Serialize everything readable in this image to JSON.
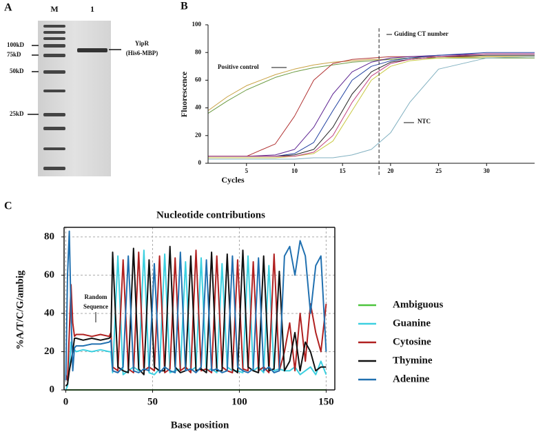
{
  "panel_labels": [
    "A",
    "B",
    "C"
  ],
  "gel": {
    "lanes": [
      "M",
      "1"
    ],
    "markers": [
      "100kD",
      "75kD",
      "50kD",
      "25kD"
    ],
    "band_label": [
      "YipR",
      "(His6-MBP)"
    ]
  },
  "chart_data": [
    {
      "type": "line",
      "x_label": "Cycles",
      "y_label": "Fluorescence",
      "x": [
        1,
        3,
        5,
        8,
        10,
        12,
        14,
        16,
        18,
        20,
        22,
        25,
        30,
        35
      ],
      "xlim": [
        1,
        35
      ],
      "ylim": [
        0,
        100
      ],
      "xticks": [
        5,
        10,
        15,
        20,
        25,
        30
      ],
      "yticks": [
        0,
        20,
        40,
        60,
        80,
        100
      ],
      "grid": false,
      "ct_line": {
        "x": 18.8,
        "label": "Guiding CT number"
      },
      "annotations": [
        "Positive control",
        "NTC"
      ],
      "series": [
        {
          "color": "#c8a040",
          "values": [
            38,
            48,
            56,
            64,
            68,
            71,
            73,
            74,
            75,
            75,
            76,
            76,
            77,
            77
          ]
        },
        {
          "color": "#6a9a40",
          "values": [
            36,
            45,
            53,
            62,
            66,
            69,
            71,
            73,
            74,
            75,
            76,
            76,
            76,
            76
          ]
        },
        {
          "color": "#b03030",
          "values": [
            5,
            5,
            5,
            14,
            34,
            60,
            72,
            75,
            76,
            77,
            77,
            77,
            77,
            77
          ]
        },
        {
          "color": "#5a2090",
          "values": [
            5,
            5,
            5,
            6,
            10,
            26,
            50,
            66,
            73,
            76,
            77,
            78,
            79,
            79
          ]
        },
        {
          "color": "#2040a0",
          "values": [
            5,
            5,
            5,
            5,
            7,
            15,
            38,
            60,
            70,
            74,
            76,
            78,
            80,
            80
          ]
        },
        {
          "color": "#202020",
          "values": [
            5,
            5,
            5,
            5,
            6,
            10,
            26,
            50,
            66,
            73,
            75,
            77,
            78,
            78
          ]
        },
        {
          "color": "#c8c840",
          "values": [
            4,
            4,
            4,
            4,
            5,
            7,
            16,
            38,
            60,
            70,
            74,
            76,
            77,
            77
          ]
        },
        {
          "color": "#c04080",
          "values": [
            5,
            5,
            5,
            5,
            5,
            8,
            20,
            44,
            63,
            72,
            75,
            77,
            79,
            79
          ]
        },
        {
          "color": "#80b0c0",
          "values": [
            3,
            3,
            3,
            3,
            3,
            4,
            4,
            6,
            10,
            22,
            44,
            68,
            76,
            77
          ]
        }
      ]
    },
    {
      "type": "line",
      "title": "Nucleotide contributions",
      "x_label": "Base position",
      "y_label": "%A/T/C/G/ambig",
      "annotation_lines": [
        "Random",
        "Sequence"
      ],
      "x": [
        0,
        1,
        2,
        3,
        4,
        5,
        6,
        10,
        15,
        20,
        25,
        26,
        27,
        30,
        33,
        36,
        39,
        42,
        45,
        48,
        51,
        54,
        57,
        60,
        63,
        66,
        69,
        72,
        75,
        78,
        81,
        84,
        87,
        90,
        93,
        96,
        99,
        102,
        105,
        108,
        111,
        114,
        117,
        120,
        123,
        126,
        129,
        132,
        135,
        138,
        141,
        144,
        147,
        150
      ],
      "xlim": [
        -1,
        155
      ],
      "ylim": [
        0,
        85
      ],
      "xticks": [
        0,
        50,
        100,
        150
      ],
      "yticks": [
        0,
        20,
        40,
        60,
        80
      ],
      "grid": true,
      "series": [
        {
          "name": "Ambiguous",
          "color": "#4cc43c",
          "values": [
            0,
            0,
            0,
            0,
            0,
            0,
            0,
            0,
            0,
            0,
            0,
            0,
            0,
            0,
            0,
            0,
            0,
            0,
            0,
            0,
            0,
            0,
            0,
            0,
            0,
            0,
            0,
            0,
            0,
            0,
            0,
            0,
            0,
            0,
            0,
            0,
            0,
            0,
            0,
            0,
            0,
            0,
            0,
            0,
            0,
            0,
            0,
            0,
            0,
            0,
            0,
            0,
            0,
            0
          ]
        },
        {
          "name": "Guanine",
          "color": "#3cd0e0",
          "values": [
            0,
            2,
            12,
            25,
            22,
            21,
            20,
            21,
            20,
            21,
            20,
            20,
            9,
            70,
            8,
            10,
            12,
            10,
            73,
            9,
            8,
            11,
            71,
            9,
            10,
            11,
            67,
            10,
            12,
            69,
            10,
            11,
            9,
            66,
            12,
            10,
            10,
            9,
            70,
            10,
            12,
            9,
            65,
            10,
            11,
            10,
            10,
            12,
            8,
            10,
            12,
            8,
            15,
            8
          ]
        },
        {
          "name": "Cytosine",
          "color": "#b02020",
          "values": [
            8,
            5,
            30,
            55,
            35,
            28,
            29,
            29,
            28,
            29,
            28,
            30,
            12,
            10,
            68,
            11,
            9,
            72,
            10,
            12,
            10,
            70,
            9,
            11,
            69,
            10,
            12,
            9,
            73,
            10,
            11,
            9,
            70,
            12,
            10,
            9,
            68,
            11,
            10,
            67,
            10,
            12,
            9,
            71,
            10,
            20,
            35,
            10,
            40,
            15,
            45,
            30,
            20,
            45
          ]
        },
        {
          "name": "Thymine",
          "color": "#101010",
          "values": [
            2,
            3,
            10,
            15,
            20,
            27,
            27,
            26,
            27,
            26,
            27,
            28,
            72,
            12,
            10,
            9,
            74,
            11,
            8,
            68,
            12,
            10,
            10,
            75,
            12,
            9,
            10,
            70,
            10,
            11,
            9,
            72,
            10,
            10,
            71,
            11,
            9,
            73,
            12,
            10,
            9,
            70,
            10,
            11,
            62,
            10,
            15,
            30,
            10,
            25,
            20,
            10,
            12,
            12
          ]
        },
        {
          "name": "Adenine",
          "color": "#2070b0",
          "values": [
            5,
            60,
            83,
            40,
            10,
            22,
            23,
            23,
            24,
            24,
            25,
            26,
            10,
            9,
            12,
            70,
            10,
            9,
            11,
            10,
            66,
            9,
            12,
            10,
            9,
            72,
            10,
            11,
            9,
            12,
            68,
            10,
            11,
            9,
            10,
            70,
            12,
            10,
            9,
            11,
            69,
            10,
            12,
            9,
            10,
            70,
            75,
            60,
            78,
            70,
            40,
            65,
            70,
            20
          ]
        }
      ]
    }
  ]
}
